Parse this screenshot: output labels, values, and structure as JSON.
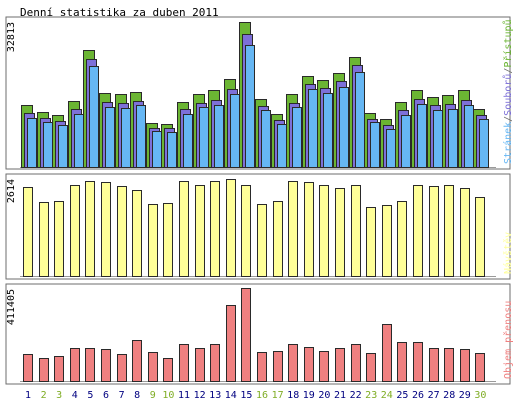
{
  "title": "Denní statistika za duben 2011",
  "colors": {
    "background": "#ffffff",
    "frame": "#6e6e6e",
    "bar_stroke": "#2a2a2a",
    "pages": "#6bb533",
    "files": "#7d70d8",
    "hits": "#66b7f4",
    "visits": "#ffff99",
    "kbytes": "#ef8080",
    "weekday_label": "#000080",
    "weekend_label": "#7fad24"
  },
  "chart_data": [
    {
      "type": "bar",
      "panel": "hits_files_pages",
      "max_label": "32813",
      "ylim": [
        0,
        32813
      ],
      "legend": [
        {
          "text": "Přístupů",
          "color_key": "pages"
        },
        {
          "text": "/",
          "color_key": "frame"
        },
        {
          "text": "Souborů",
          "color_key": "files"
        },
        {
          "text": "/",
          "color_key": "frame"
        },
        {
          "text": "Stránek",
          "color_key": "hits"
        }
      ],
      "categories": [
        "1",
        "2",
        "3",
        "4",
        "5",
        "6",
        "7",
        "8",
        "9",
        "10",
        "11",
        "12",
        "13",
        "14",
        "15",
        "16",
        "17",
        "18",
        "19",
        "20",
        "21",
        "22",
        "23",
        "24",
        "25",
        "26",
        "27",
        "28",
        "29",
        "30"
      ],
      "series": [
        {
          "name": "Přístupů",
          "color_key": "pages",
          "values": [
            14100,
            12500,
            11800,
            15000,
            26400,
            16700,
            16600,
            17000,
            10000,
            9800,
            14800,
            16600,
            17400,
            20000,
            32813,
            15300,
            12100,
            16600,
            20700,
            19800,
            21300,
            24800,
            12200,
            10900,
            14600,
            17400,
            15900,
            16300,
            17400,
            13200
          ]
        },
        {
          "name": "Souborů",
          "color_key": "files",
          "values": [
            12300,
            11000,
            10400,
            13100,
            24500,
            14700,
            14500,
            15000,
            8900,
            8800,
            13100,
            14500,
            15200,
            17700,
            30000,
            13700,
            10600,
            14500,
            18700,
            17800,
            19400,
            23000,
            10900,
            9600,
            12800,
            15300,
            14000,
            14300,
            15200,
            11700
          ]
        },
        {
          "name": "Stránek",
          "color_key": "hits",
          "values": [
            11200,
            10200,
            9400,
            12100,
            22800,
            13600,
            13400,
            14000,
            8200,
            8000,
            12100,
            13500,
            14100,
            16500,
            27700,
            12800,
            9800,
            13600,
            17600,
            16700,
            18200,
            21500,
            10100,
            8700,
            11800,
            14200,
            13000,
            13200,
            14000,
            10800
          ]
        }
      ]
    },
    {
      "type": "bar",
      "panel": "visits",
      "max_label": "2614",
      "ylim": [
        0,
        2614
      ],
      "legend": [
        {
          "text": "Návštěv",
          "color_key": "visits"
        }
      ],
      "categories": [
        "1",
        "2",
        "3",
        "4",
        "5",
        "6",
        "7",
        "8",
        "9",
        "10",
        "11",
        "12",
        "13",
        "14",
        "15",
        "16",
        "17",
        "18",
        "19",
        "20",
        "21",
        "22",
        "23",
        "24",
        "25",
        "26",
        "27",
        "28",
        "29",
        "30"
      ],
      "series": [
        {
          "name": "Návštěv",
          "color_key": "visits",
          "values": [
            2390,
            1990,
            2020,
            2450,
            2550,
            2520,
            2430,
            2330,
            1930,
            1970,
            2570,
            2450,
            2550,
            2614,
            2460,
            1930,
            2010,
            2570,
            2520,
            2450,
            2370,
            2450,
            1850,
            1910,
            2030,
            2460,
            2430,
            2460,
            2370,
            2130
          ]
        }
      ]
    },
    {
      "type": "bar",
      "panel": "kbytes",
      "max_label": "411405",
      "ylim": [
        0,
        411405
      ],
      "legend": [
        {
          "text": "Objem přenosu",
          "color_key": "kbytes"
        }
      ],
      "categories": [
        "1",
        "2",
        "3",
        "4",
        "5",
        "6",
        "7",
        "8",
        "9",
        "10",
        "11",
        "12",
        "13",
        "14",
        "15",
        "16",
        "17",
        "18",
        "19",
        "20",
        "21",
        "22",
        "23",
        "24",
        "25",
        "26",
        "27",
        "28",
        "29",
        "30"
      ],
      "series": [
        {
          "name": "Objem přenosu",
          "color_key": "kbytes",
          "values": [
            120000,
            103000,
            110000,
            145000,
            144000,
            141000,
            120000,
            183000,
            128000,
            103000,
            163000,
            147000,
            163000,
            335000,
            411405,
            127000,
            132000,
            165000,
            149000,
            132000,
            146000,
            165000,
            122000,
            250000,
            173000,
            172000,
            147000,
            147000,
            140000,
            124000
          ]
        }
      ]
    }
  ],
  "weekend_days": [
    "2",
    "3",
    "9",
    "10",
    "16",
    "17",
    "23",
    "24",
    "30"
  ]
}
